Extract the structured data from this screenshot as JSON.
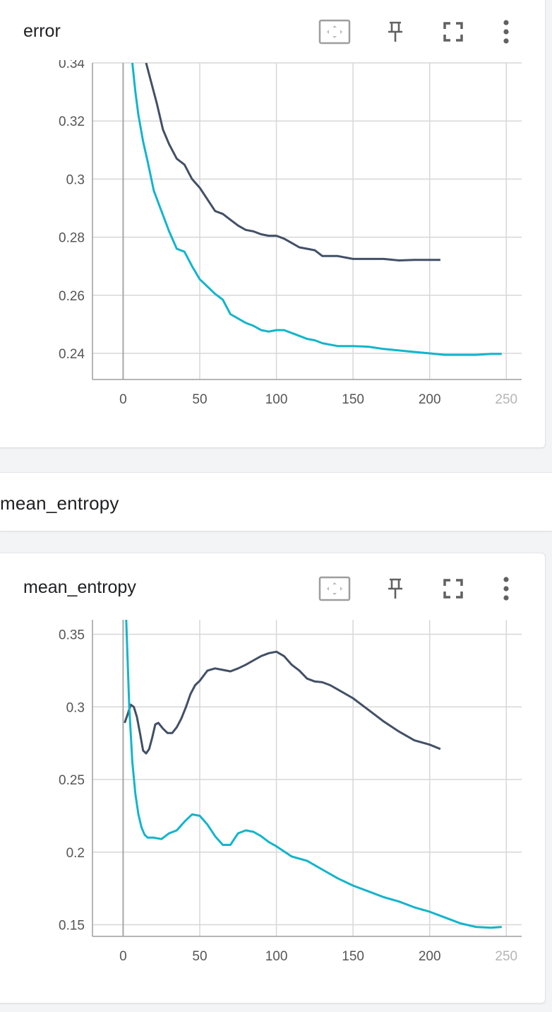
{
  "error_card": {
    "title": "error",
    "toolbar": {
      "fit_icon": "fit-to-data-icon",
      "pin_icon": "pin-icon",
      "fullscreen_icon": "fullscreen-icon",
      "more_icon": "more-vert-icon"
    }
  },
  "group": {
    "title": "mean_entropy"
  },
  "entropy_card": {
    "title": "mean_entropy",
    "toolbar": {
      "fit_icon": "fit-to-data-icon",
      "pin_icon": "pin-icon",
      "fullscreen_icon": "fullscreen-icon",
      "more_icon": "more-vert-icon"
    }
  },
  "colors": {
    "series_dark": "#425066",
    "series_cyan": "#12b5cb",
    "grid": "#d7d7d7"
  },
  "chart_data": [
    {
      "type": "line",
      "title": "error",
      "xlabel": "",
      "ylabel": "",
      "xlim": [
        -20,
        260
      ],
      "ylim": [
        0.231,
        0.34
      ],
      "x_ticks": [
        0,
        50,
        100,
        150,
        200,
        250
      ],
      "y_ticks": [
        0.24,
        0.26,
        0.28,
        0.3,
        0.32,
        0.34
      ],
      "x_tick_labels": [
        "0",
        "50",
        "100",
        "150",
        "200",
        "250"
      ],
      "y_tick_labels": [
        "0.24",
        "0.26",
        "0.28",
        "0.3",
        "0.32",
        "0.34"
      ],
      "grid": true,
      "series": [
        {
          "color": "#425066",
          "x": [
            15,
            18,
            22,
            26,
            30,
            35,
            40,
            45,
            50,
            55,
            60,
            65,
            70,
            75,
            80,
            85,
            90,
            95,
            100,
            105,
            110,
            115,
            120,
            125,
            130,
            135,
            140,
            145,
            150,
            160,
            170,
            180,
            190,
            200,
            207
          ],
          "y": [
            0.34,
            0.334,
            0.326,
            0.317,
            0.312,
            0.307,
            0.305,
            0.3,
            0.297,
            0.293,
            0.289,
            0.288,
            0.286,
            0.284,
            0.2825,
            0.282,
            0.281,
            0.2805,
            0.2805,
            0.2795,
            0.278,
            0.2765,
            0.276,
            0.2755,
            0.2735,
            0.2735,
            0.2735,
            0.273,
            0.2725,
            0.2725,
            0.2725,
            0.272,
            0.2722,
            0.2722,
            0.2722
          ]
        },
        {
          "color": "#12b5cb",
          "x": [
            6,
            8,
            10,
            13,
            16,
            20,
            25,
            30,
            35,
            40,
            45,
            50,
            55,
            60,
            65,
            70,
            75,
            80,
            85,
            90,
            95,
            100,
            105,
            110,
            115,
            120,
            125,
            130,
            135,
            140,
            145,
            150,
            160,
            170,
            180,
            190,
            200,
            210,
            220,
            230,
            240,
            247
          ],
          "y": [
            0.34,
            0.33,
            0.322,
            0.313,
            0.306,
            0.296,
            0.289,
            0.282,
            0.276,
            0.275,
            0.27,
            0.2655,
            0.263,
            0.2605,
            0.2585,
            0.2535,
            0.252,
            0.2505,
            0.2495,
            0.248,
            0.2475,
            0.248,
            0.248,
            0.247,
            0.246,
            0.245,
            0.2445,
            0.2435,
            0.243,
            0.2425,
            0.2425,
            0.2425,
            0.2423,
            0.2415,
            0.241,
            0.2405,
            0.24,
            0.2395,
            0.2395,
            0.2395,
            0.2398,
            0.2398
          ]
        }
      ]
    },
    {
      "type": "line",
      "title": "mean_entropy",
      "xlabel": "",
      "ylabel": "",
      "xlim": [
        -20,
        260
      ],
      "ylim": [
        0.142,
        0.36
      ],
      "x_ticks": [
        0,
        50,
        100,
        150,
        200,
        250
      ],
      "y_ticks": [
        0.15,
        0.2,
        0.25,
        0.3,
        0.35
      ],
      "x_tick_labels": [
        "0",
        "50",
        "100",
        "150",
        "200",
        "250"
      ],
      "y_tick_labels": [
        "0.15",
        "0.2",
        "0.25",
        "0.3",
        "0.35"
      ],
      "grid": true,
      "series": [
        {
          "color": "#425066",
          "x": [
            1,
            3,
            5,
            7,
            9,
            11,
            13,
            15,
            17,
            19,
            21,
            23,
            26,
            29,
            32,
            35,
            38,
            41,
            44,
            47,
            50,
            55,
            60,
            65,
            70,
            75,
            80,
            85,
            90,
            95,
            100,
            105,
            110,
            115,
            120,
            125,
            130,
            135,
            140,
            150,
            160,
            170,
            180,
            190,
            200,
            207
          ],
          "y": [
            0.289,
            0.295,
            0.3015,
            0.3,
            0.293,
            0.282,
            0.27,
            0.268,
            0.271,
            0.279,
            0.288,
            0.289,
            0.285,
            0.282,
            0.282,
            0.286,
            0.292,
            0.3,
            0.309,
            0.315,
            0.318,
            0.325,
            0.3265,
            0.3255,
            0.3245,
            0.3265,
            0.329,
            0.332,
            0.335,
            0.337,
            0.338,
            0.335,
            0.329,
            0.325,
            0.3195,
            0.3175,
            0.317,
            0.315,
            0.312,
            0.306,
            0.298,
            0.29,
            0.283,
            0.277,
            0.274,
            0.271
          ]
        },
        {
          "color": "#12b5cb",
          "x": [
            2,
            4,
            6,
            8,
            10,
            12,
            14,
            16,
            20,
            25,
            30,
            35,
            40,
            45,
            50,
            55,
            60,
            65,
            70,
            75,
            80,
            85,
            90,
            95,
            100,
            110,
            120,
            130,
            140,
            150,
            160,
            170,
            180,
            190,
            200,
            210,
            220,
            230,
            240,
            247
          ],
          "y": [
            0.36,
            0.3,
            0.262,
            0.24,
            0.226,
            0.217,
            0.212,
            0.21,
            0.21,
            0.209,
            0.213,
            0.215,
            0.221,
            0.226,
            0.225,
            0.219,
            0.211,
            0.205,
            0.205,
            0.213,
            0.215,
            0.214,
            0.211,
            0.207,
            0.204,
            0.197,
            0.194,
            0.188,
            0.182,
            0.177,
            0.173,
            0.169,
            0.166,
            0.162,
            0.159,
            0.155,
            0.151,
            0.1485,
            0.148,
            0.1485
          ]
        }
      ]
    }
  ]
}
